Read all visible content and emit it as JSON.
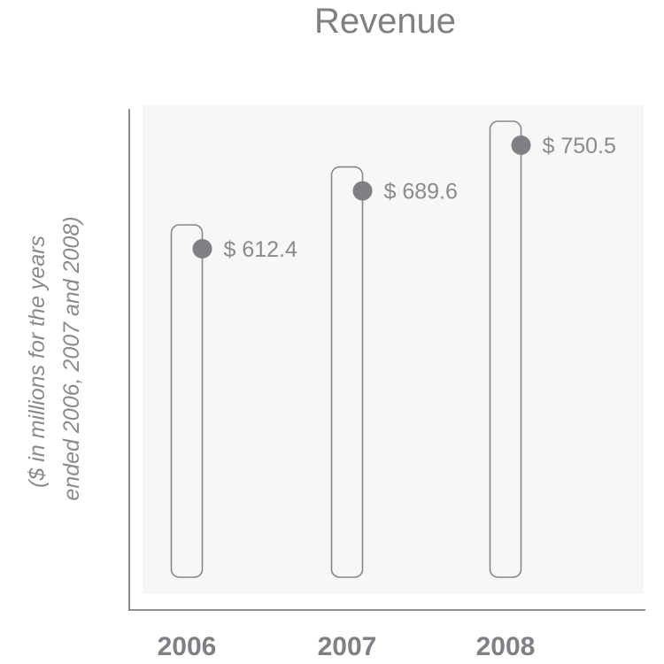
{
  "chart_data": {
    "type": "bar",
    "title": "Revenue",
    "xlabel": "",
    "ylabel_lines": [
      "($ in millions for the years",
      "ended 2006, 2007 and 2008)"
    ],
    "categories": [
      "2006",
      "2007",
      "2008"
    ],
    "values": [
      612.4,
      689.6,
      750.5
    ],
    "value_labels": [
      "$ 612.4",
      "$ 689.6",
      "$ 750.5"
    ],
    "grid": false,
    "legend": "none",
    "colors": {
      "plot_background": "#f6f7f6",
      "bar_outline": "#87878c",
      "marker": "#7f7f84",
      "axis": "#6f6f74",
      "text": "#7f7f84"
    }
  }
}
